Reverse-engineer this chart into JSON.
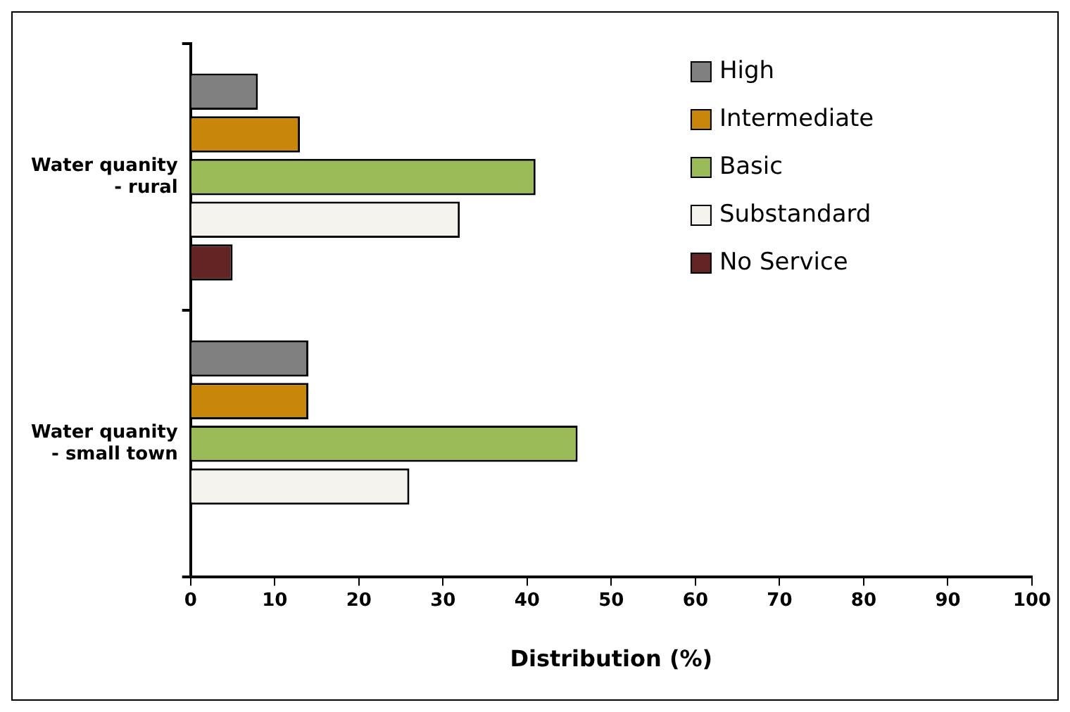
{
  "chart_data": {
    "type": "bar",
    "orientation": "horizontal",
    "xlabel": "Distribution (%)",
    "categories": [
      "Water quanity\n- rural",
      "Water quanity\n- small town"
    ],
    "series": [
      {
        "name": "High",
        "color": "#808080",
        "values": [
          8,
          14
        ]
      },
      {
        "name": "Intermediate",
        "color": "#c8860a",
        "values": [
          13,
          14
        ]
      },
      {
        "name": "Basic",
        "color": "#9bbb59",
        "values": [
          41,
          46
        ]
      },
      {
        "name": "Substandard",
        "color": "#f5f3ee",
        "values": [
          32,
          26
        ]
      },
      {
        "name": "No Service",
        "color": "#632523",
        "values": [
          5,
          0
        ]
      }
    ],
    "xlim": [
      0,
      100
    ],
    "xticks": [
      0,
      10,
      20,
      30,
      40,
      50,
      60,
      70,
      80,
      90,
      100
    ],
    "grid": false,
    "legend": "top right"
  }
}
